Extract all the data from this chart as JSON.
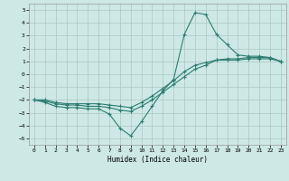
{
  "xlabel": "Humidex (Indice chaleur)",
  "background_color": "#cde8e5",
  "grid_color": "#aac8c5",
  "line_color": "#2e7d72",
  "ylim": [
    -5.5,
    5.5
  ],
  "xlim": [
    -0.5,
    23.5
  ],
  "yticks": [
    -5,
    -4,
    -3,
    -2,
    -1,
    0,
    1,
    2,
    3,
    4,
    5
  ],
  "xticks": [
    0,
    1,
    2,
    3,
    4,
    5,
    6,
    7,
    8,
    9,
    10,
    11,
    12,
    13,
    14,
    15,
    16,
    17,
    18,
    19,
    20,
    21,
    22,
    23
  ],
  "series": [
    {
      "x": [
        0,
        1,
        2,
        3,
        4,
        5,
        6,
        7,
        8,
        9,
        10,
        11,
        12,
        13,
        14,
        15,
        16,
        17,
        18,
        19,
        20,
        21,
        22,
        23
      ],
      "y": [
        -2.0,
        -2.2,
        -2.5,
        -2.6,
        -2.6,
        -2.7,
        -2.7,
        -3.1,
        -4.2,
        -4.8,
        -3.7,
        -2.5,
        -1.3,
        -0.4,
        3.1,
        4.8,
        4.65,
        3.1,
        2.3,
        1.5,
        1.4,
        1.4,
        1.3,
        1.0
      ]
    },
    {
      "x": [
        0,
        1,
        2,
        3,
        4,
        5,
        6,
        7,
        8,
        9,
        10,
        11,
        12,
        13,
        14,
        15,
        16,
        17,
        18,
        19,
        20,
        21,
        22,
        23
      ],
      "y": [
        -2.0,
        -2.1,
        -2.3,
        -2.4,
        -2.4,
        -2.5,
        -2.5,
        -2.6,
        -2.8,
        -2.9,
        -2.5,
        -2.0,
        -1.4,
        -0.8,
        -0.2,
        0.4,
        0.7,
        1.1,
        1.2,
        1.2,
        1.3,
        1.3,
        1.3,
        1.0
      ]
    },
    {
      "x": [
        0,
        1,
        2,
        3,
        4,
        5,
        6,
        7,
        8,
        9,
        10,
        11,
        12,
        13,
        14,
        15,
        16,
        17,
        18,
        19,
        20,
        21,
        22,
        23
      ],
      "y": [
        -2.0,
        -2.0,
        -2.2,
        -2.3,
        -2.3,
        -2.3,
        -2.3,
        -2.4,
        -2.5,
        -2.6,
        -2.2,
        -1.7,
        -1.1,
        -0.5,
        0.2,
        0.7,
        0.9,
        1.1,
        1.1,
        1.1,
        1.2,
        1.2,
        1.2,
        1.0
      ]
    }
  ]
}
